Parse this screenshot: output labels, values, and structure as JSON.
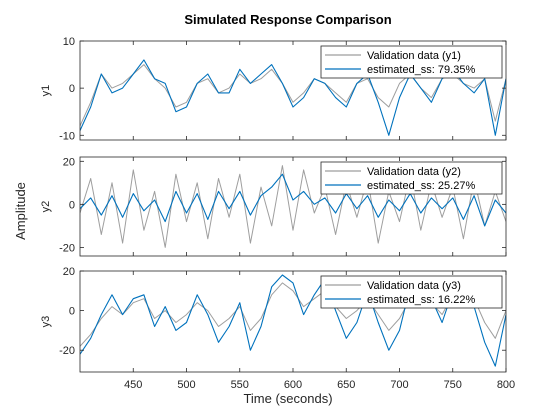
{
  "chart_data": {
    "type": "line",
    "title": "Simulated Response Comparison",
    "xlabel": "Time (seconds)",
    "ylabel": "Amplitude",
    "xlim": [
      400,
      800
    ],
    "xticks": [
      450,
      500,
      550,
      600,
      650,
      700,
      750,
      800
    ],
    "grid": false,
    "legend_position": "top-right",
    "colors": {
      "validation": "#9e9e9e",
      "estimated": "#0072bd"
    },
    "panels": [
      {
        "name": "y1",
        "ylim": [
          -11,
          10
        ],
        "yticks": [
          -10,
          0,
          10
        ],
        "legend": [
          "Validation data (y1)",
          "estimated_ss:  79.35%"
        ],
        "x": [
          400,
          410,
          420,
          430,
          440,
          450,
          460,
          470,
          480,
          490,
          500,
          510,
          520,
          530,
          540,
          550,
          560,
          570,
          580,
          590,
          600,
          610,
          620,
          630,
          640,
          650,
          660,
          670,
          680,
          690,
          700,
          710,
          720,
          730,
          740,
          750,
          760,
          770,
          780,
          790,
          800
        ],
        "series": [
          {
            "name": "Validation data (y1)",
            "values": [
              -8,
              -3,
              3,
              0,
              1,
              3,
              5,
              2,
              0,
              -4,
              -3,
              1,
              2,
              -1,
              0,
              3,
              1,
              2,
              4,
              1,
              -3,
              -1,
              2,
              1,
              -1,
              -3,
              1,
              2,
              -2,
              -4,
              1,
              3,
              0,
              -2,
              2,
              3,
              1,
              0,
              2,
              -7,
              2
            ]
          },
          {
            "name": "estimated_ss:  79.35%",
            "values": [
              -9,
              -4,
              3,
              -1,
              0,
              3,
              6,
              2,
              1,
              -5,
              -4,
              1,
              3,
              -1,
              -1,
              4,
              1,
              3,
              5,
              1,
              -4,
              -2,
              2,
              1,
              -2,
              -4,
              1,
              3,
              -3,
              -10,
              -2,
              3,
              0,
              -3,
              2,
              4,
              1,
              -1,
              2,
              -10,
              2
            ]
          }
        ]
      },
      {
        "name": "y2",
        "ylim": [
          -24,
          22
        ],
        "yticks": [
          -20,
          0,
          20
        ],
        "legend": [
          "Validation data (y2)",
          "estimated_ss:  25.27%"
        ],
        "x": [
          400,
          410,
          420,
          430,
          440,
          450,
          460,
          470,
          480,
          490,
          500,
          510,
          520,
          530,
          540,
          550,
          560,
          570,
          580,
          590,
          600,
          610,
          620,
          630,
          640,
          650,
          660,
          670,
          680,
          690,
          700,
          710,
          720,
          730,
          740,
          750,
          760,
          770,
          780,
          790,
          800
        ],
        "series": [
          {
            "name": "Validation data (y2)",
            "values": [
              -4,
              12,
              -14,
              10,
              -18,
              16,
              -12,
              6,
              -20,
              14,
              -8,
              10,
              -16,
              12,
              -6,
              14,
              -18,
              8,
              -10,
              18,
              -12,
              16,
              -4,
              8,
              -14,
              10,
              -6,
              12,
              -18,
              6,
              -8,
              14,
              -12,
              10,
              -6,
              8,
              -16,
              12,
              -10,
              6,
              -8
            ]
          },
          {
            "name": "estimated_ss:  25.27%",
            "values": [
              -2,
              3,
              -5,
              4,
              -6,
              5,
              -3,
              2,
              -8,
              6,
              -4,
              5,
              -7,
              6,
              -2,
              6,
              -5,
              4,
              8,
              14,
              2,
              6,
              0,
              3,
              -4,
              5,
              -2,
              4,
              -6,
              2,
              -3,
              5,
              -4,
              3,
              -2,
              3,
              -7,
              4,
              -10,
              2,
              -4
            ]
          }
        ]
      },
      {
        "name": "y3",
        "ylim": [
          -31,
          20
        ],
        "yticks": [
          -20,
          0,
          20
        ],
        "legend": [
          "Validation data (y3)",
          "estimated_ss:  16.22%"
        ],
        "x": [
          400,
          410,
          420,
          430,
          440,
          450,
          460,
          470,
          480,
          490,
          500,
          510,
          520,
          530,
          540,
          550,
          560,
          570,
          580,
          590,
          600,
          610,
          620,
          630,
          640,
          650,
          660,
          670,
          680,
          690,
          700,
          710,
          720,
          730,
          740,
          750,
          760,
          770,
          780,
          790,
          800
        ],
        "series": [
          {
            "name": "Validation data (y3)",
            "values": [
              -18,
              -12,
              -4,
              2,
              -2,
              4,
              6,
              -4,
              0,
              -6,
              -2,
              4,
              0,
              -8,
              -4,
              2,
              -10,
              -4,
              8,
              14,
              10,
              2,
              6,
              10,
              2,
              -4,
              0,
              6,
              -2,
              -10,
              -4,
              6,
              10,
              4,
              -2,
              8,
              12,
              6,
              -6,
              -14,
              0
            ]
          },
          {
            "name": "estimated_ss:  16.22%",
            "values": [
              -22,
              -14,
              -2,
              8,
              -2,
              6,
              8,
              -8,
              2,
              -10,
              -6,
              8,
              -2,
              -16,
              -8,
              4,
              -20,
              -8,
              12,
              18,
              14,
              -2,
              8,
              16,
              0,
              -14,
              -6,
              10,
              -6,
              -20,
              -10,
              12,
              16,
              6,
              -6,
              10,
              16,
              2,
              -16,
              -28,
              -2
            ]
          }
        ]
      }
    ]
  }
}
